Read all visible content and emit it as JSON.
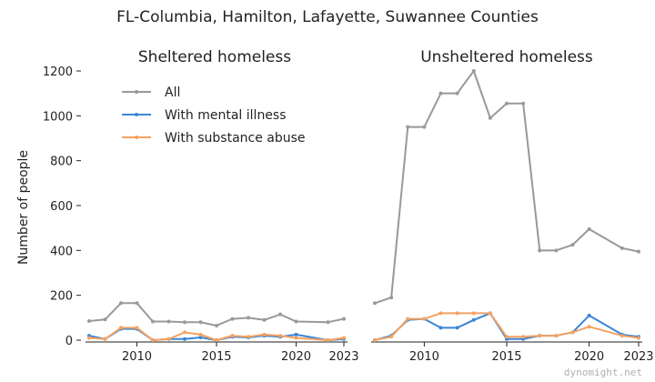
{
  "figure": {
    "suptitle": "FL-Columbia, Hamilton, Lafayette, Suwannee Counties",
    "ylabel": "Number of people",
    "watermark": "dynomight.net"
  },
  "legend": {
    "placement": "top-left of left panel",
    "entries": [
      {
        "label": "All",
        "color": "#999999"
      },
      {
        "label": "With mental illness",
        "color": "#3a86d8"
      },
      {
        "label": "With substance abuse",
        "color": "#f4a261"
      }
    ]
  },
  "chart_data": [
    {
      "type": "line",
      "title": "Sheltered homeless",
      "xlim": [
        2007,
        2023
      ],
      "ylim": [
        0,
        1200
      ],
      "xticks": [
        2010,
        2015,
        2020,
        2023
      ],
      "yticks": [
        0,
        200,
        400,
        600,
        800,
        1000,
        1200
      ],
      "grid": false,
      "series": [
        {
          "name": "All",
          "color": "#999999",
          "x": [
            2007,
            2008,
            2009,
            2010,
            2011,
            2012,
            2013,
            2014,
            2015,
            2016,
            2017,
            2018,
            2019,
            2020,
            2022,
            2023
          ],
          "y": [
            85,
            92,
            165,
            165,
            83,
            83,
            80,
            80,
            65,
            95,
            100,
            90,
            115,
            83,
            80,
            95
          ]
        },
        {
          "name": "With mental illness",
          "color": "#3a86d8",
          "x": [
            2007,
            2008,
            2009,
            2010,
            2011,
            2012,
            2013,
            2014,
            2015,
            2016,
            2017,
            2018,
            2019,
            2020,
            2022,
            2023
          ],
          "y": [
            20,
            5,
            50,
            50,
            0,
            5,
            5,
            12,
            0,
            15,
            12,
            20,
            15,
            25,
            0,
            5
          ]
        },
        {
          "name": "With substance abuse",
          "color": "#f4a261",
          "x": [
            2007,
            2008,
            2009,
            2010,
            2011,
            2012,
            2013,
            2014,
            2015,
            2016,
            2017,
            2018,
            2019,
            2020,
            2022,
            2023
          ],
          "y": [
            10,
            5,
            55,
            55,
            0,
            5,
            35,
            25,
            0,
            20,
            15,
            25,
            20,
            10,
            0,
            10
          ]
        }
      ]
    },
    {
      "type": "line",
      "title": "Unsheltered homeless",
      "xlim": [
        2007,
        2023
      ],
      "ylim": [
        0,
        1200
      ],
      "xticks": [
        2010,
        2015,
        2020,
        2023
      ],
      "yticks": [],
      "grid": false,
      "series": [
        {
          "name": "All",
          "color": "#999999",
          "x": [
            2007,
            2008,
            2009,
            2010,
            2011,
            2012,
            2013,
            2014,
            2015,
            2016,
            2017,
            2018,
            2019,
            2020,
            2022,
            2023
          ],
          "y": [
            165,
            190,
            950,
            950,
            1100,
            1100,
            1200,
            990,
            1055,
            1055,
            400,
            400,
            425,
            495,
            410,
            395
          ]
        },
        {
          "name": "With mental illness",
          "color": "#3a86d8",
          "x": [
            2007,
            2008,
            2009,
            2010,
            2011,
            2012,
            2013,
            2014,
            2015,
            2016,
            2017,
            2018,
            2019,
            2020,
            2022,
            2023
          ],
          "y": [
            0,
            20,
            90,
            95,
            55,
            55,
            90,
            120,
            5,
            5,
            20,
            20,
            35,
            110,
            25,
            15
          ]
        },
        {
          "name": "With substance abuse",
          "color": "#f4a261",
          "x": [
            2007,
            2008,
            2009,
            2010,
            2011,
            2012,
            2013,
            2014,
            2015,
            2016,
            2017,
            2018,
            2019,
            2020,
            2022,
            2023
          ],
          "y": [
            0,
            15,
            95,
            95,
            120,
            120,
            120,
            120,
            15,
            15,
            20,
            20,
            35,
            60,
            20,
            10
          ]
        }
      ]
    }
  ]
}
